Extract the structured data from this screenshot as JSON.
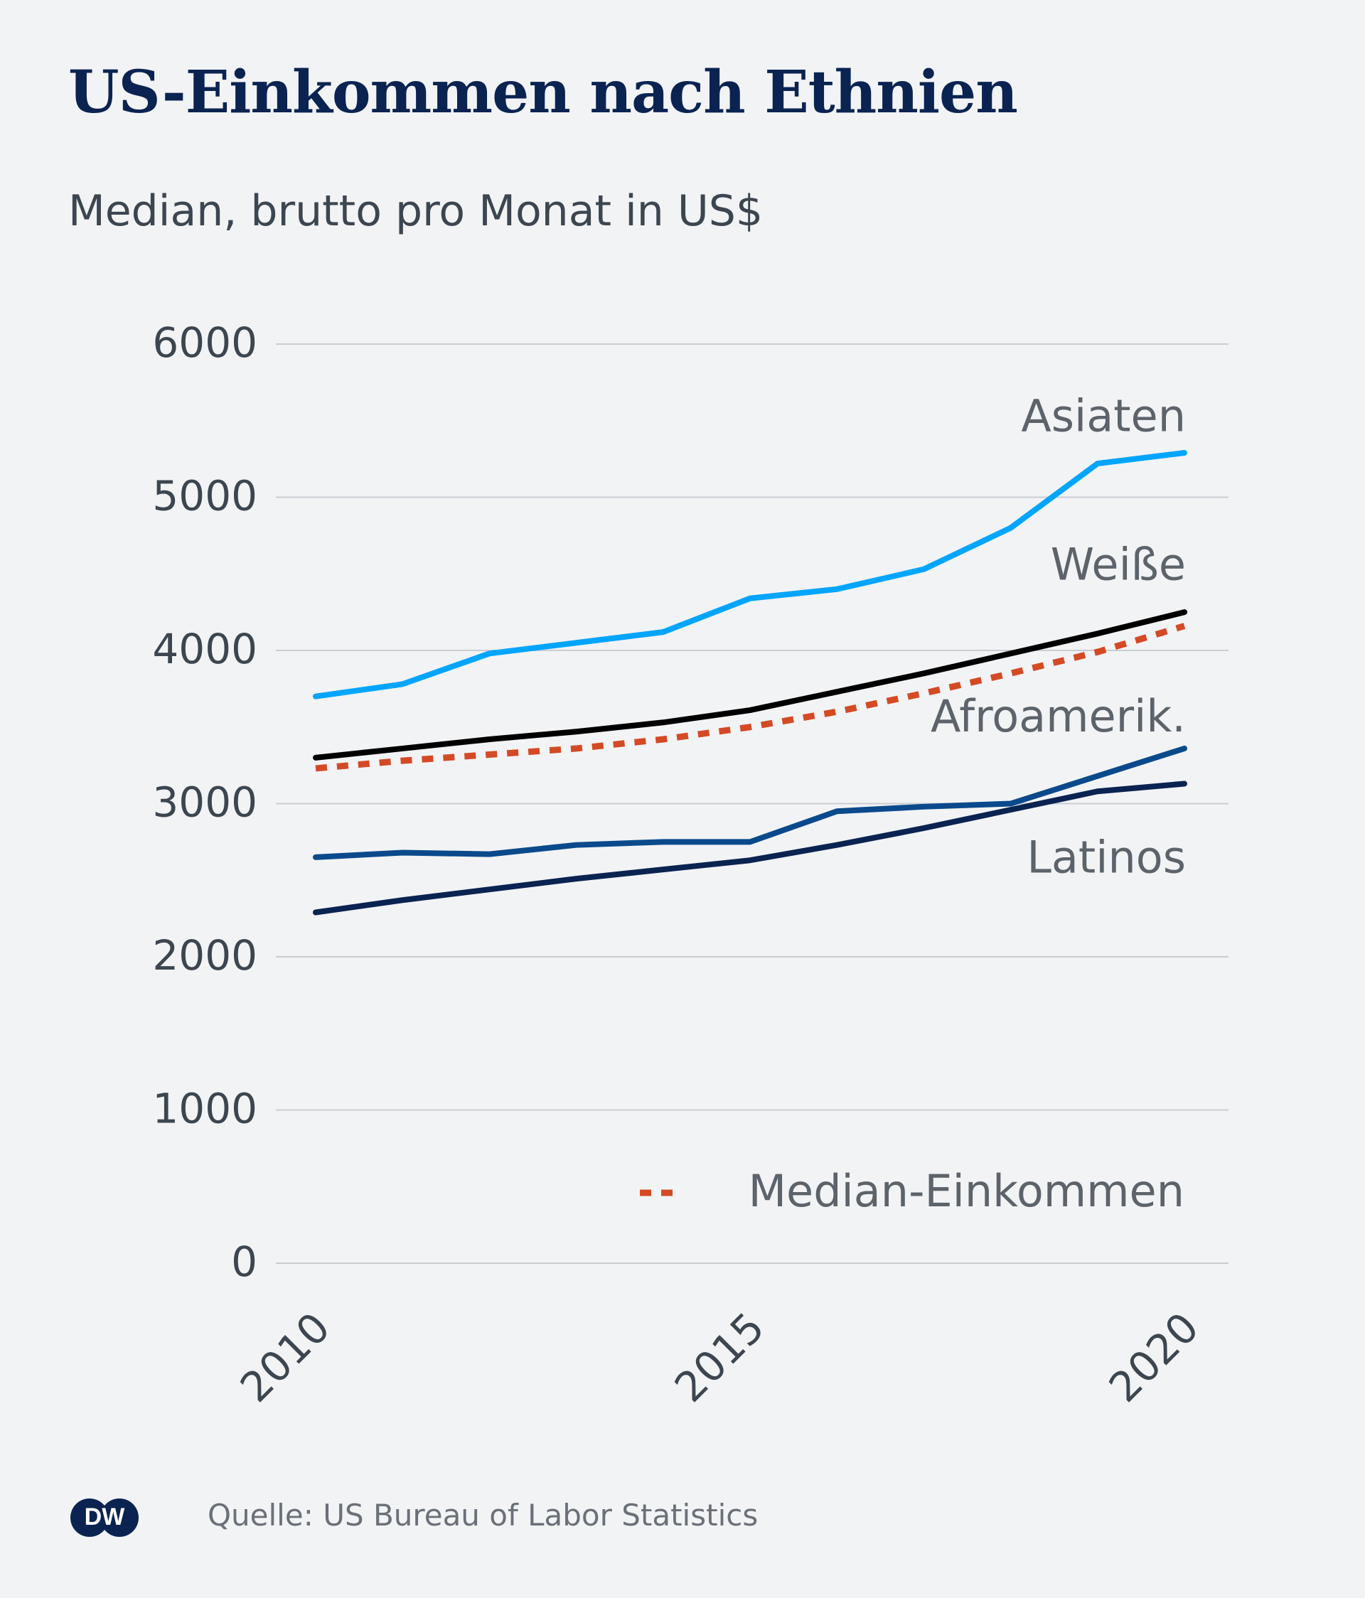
{
  "title": "US-Einkommen nach Ethnien",
  "subtitle": "Median, brutto pro Monat in US$",
  "source": "Quelle: US Bureau of Labor Statistics",
  "logo_text": "DW",
  "colors": {
    "background": "#f2f3f5",
    "title": "#0a2351",
    "gridline": "#c9cdd2"
  },
  "chart_data": {
    "type": "line",
    "x": [
      2010,
      2011,
      2012,
      2013,
      2014,
      2015,
      2016,
      2017,
      2018,
      2019,
      2020
    ],
    "xlim": [
      2010,
      2020
    ],
    "ylim": [
      0,
      6000
    ],
    "xticks": [
      "2010",
      "2015",
      "2020"
    ],
    "yticks": [
      "0",
      "1000",
      "2000",
      "3000",
      "4000",
      "5000",
      "6000"
    ],
    "grid": true,
    "legend": {
      "label": "Median-Einkommen",
      "placement": "bottom-right"
    },
    "series": [
      {
        "name": "Asiaten",
        "color": "#00a5ff",
        "dashed": false,
        "values": [
          3700,
          3780,
          3980,
          4050,
          4120,
          4340,
          4400,
          4530,
          4800,
          5220,
          5290
        ]
      },
      {
        "name": "Weiße",
        "color": "#000000",
        "dashed": false,
        "values": [
          3300,
          3360,
          3420,
          3470,
          3530,
          3610,
          3730,
          3850,
          3980,
          4110,
          4250
        ]
      },
      {
        "name": "Median-Einkommen",
        "color": "#d44a25",
        "dashed": true,
        "values": [
          3230,
          3280,
          3320,
          3360,
          3420,
          3500,
          3600,
          3720,
          3850,
          3990,
          4160
        ]
      },
      {
        "name": "Afroamerik.",
        "color": "#0a4a8c",
        "dashed": false,
        "values": [
          2650,
          2680,
          2670,
          2730,
          2750,
          2750,
          2950,
          2980,
          3000,
          3180,
          3360
        ]
      },
      {
        "name": "Latinos",
        "color": "#0a2351",
        "dashed": false,
        "values": [
          2290,
          2370,
          2440,
          2510,
          2570,
          2630,
          2730,
          2840,
          2960,
          3080,
          3130
        ]
      }
    ]
  }
}
